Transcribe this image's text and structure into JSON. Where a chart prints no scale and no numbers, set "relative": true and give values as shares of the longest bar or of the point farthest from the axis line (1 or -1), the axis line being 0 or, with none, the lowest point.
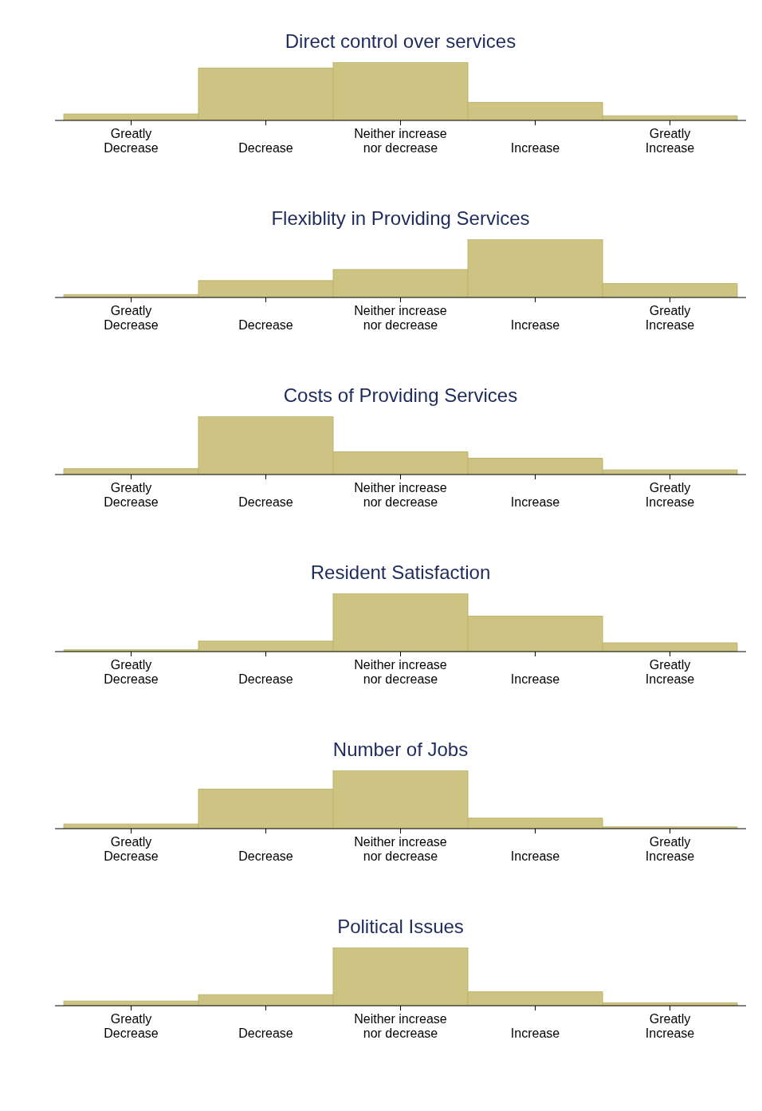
{
  "chart_data": [
    {
      "type": "bar",
      "title": "Direct control over services",
      "categories": [
        "Greatly\nDecrease",
        "Decrease",
        "Neither increase\nnor decrease",
        "Increase",
        "Greatly\nIncrease"
      ],
      "values": [
        0.11,
        0.9,
        1,
        0.31,
        0.08
      ],
      "color": "#cdc483",
      "relative": true
    },
    {
      "type": "bar",
      "title": "Flexiblity in Providing Services",
      "categories": [
        "Greatly\nDecrease",
        "Decrease",
        "Neither increase\nnor decrease",
        "Increase",
        "Greatly\nIncrease"
      ],
      "values": [
        0.05,
        0.29,
        0.48,
        1,
        0.24
      ],
      "color": "#cdc483",
      "relative": true
    },
    {
      "type": "bar",
      "title": "Costs of Providing Services",
      "categories": [
        "Greatly\nDecrease",
        "Decrease",
        "Neither increase\nnor decrease",
        "Increase",
        "Greatly\nIncrease"
      ],
      "values": [
        0.1,
        1,
        0.39,
        0.28,
        0.08
      ],
      "color": "#cdc483",
      "relative": true
    },
    {
      "type": "bar",
      "title": "Resident Satisfaction",
      "categories": [
        "Greatly\nDecrease",
        "Decrease",
        "Neither increase\nnor decrease",
        "Increase",
        "Greatly\nIncrease"
      ],
      "values": [
        0.03,
        0.18,
        1,
        0.61,
        0.15
      ],
      "color": "#cdc483",
      "relative": true
    },
    {
      "type": "bar",
      "title": "Number of Jobs",
      "categories": [
        "Greatly\nDecrease",
        "Decrease",
        "Neither increase\nnor decrease",
        "Increase",
        "Greatly\nIncrease"
      ],
      "values": [
        0.08,
        0.68,
        1,
        0.18,
        0.03
      ],
      "color": "#cdc483",
      "relative": true
    },
    {
      "type": "bar",
      "title": "Political Issues",
      "categories": [
        "Greatly\nDecrease",
        "Decrease",
        "Neither increase\nnor decrease",
        "Increase",
        "Greatly\nIncrease"
      ],
      "values": [
        0.08,
        0.19,
        1,
        0.24,
        0.05
      ],
      "color": "#cdc483",
      "relative": true
    }
  ]
}
